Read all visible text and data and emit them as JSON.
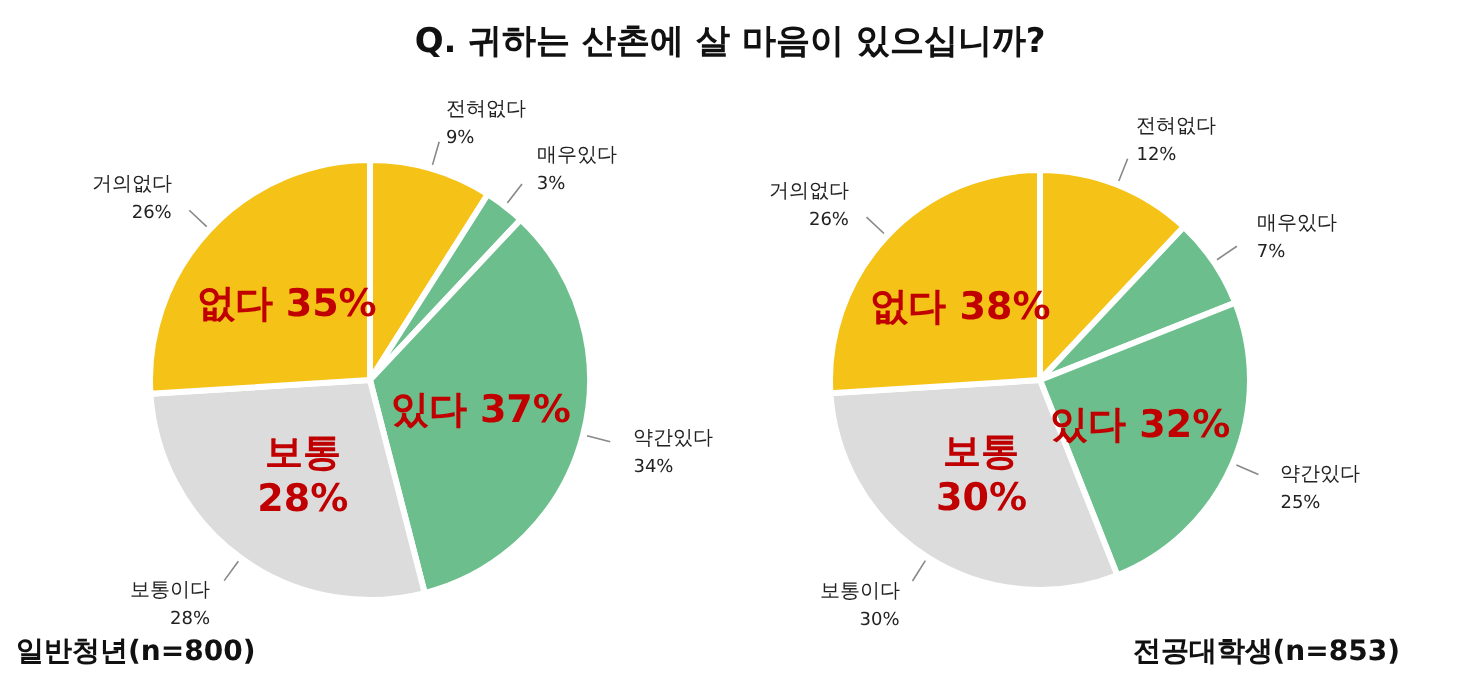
{
  "chart_data": [
    {
      "type": "pie",
      "title": "Q. 귀하는 산촌에 살 마음이 있으십니까?",
      "categories": [
        "전혀없다",
        "매우있다",
        "약간있다",
        "보통이다",
        "거의없다"
      ],
      "values": [
        9,
        3,
        34,
        28,
        26
      ],
      "colors": [
        "#f5c318",
        "#6cbf8c",
        "#6cbf8c",
        "#dcdcdc",
        "#f5c318"
      ],
      "value_labels": [
        "9%",
        "3%",
        "34%",
        "28%",
        "26%"
      ],
      "annotations": [
        "없다 35%",
        "있다 37%",
        "보통 28%",
        "일반청년(n=800)"
      ]
    },
    {
      "type": "pie",
      "categories": [
        "전혀없다",
        "매우있다",
        "약간있다",
        "보통이다",
        "거의없다"
      ],
      "values": [
        12,
        7,
        25,
        30,
        26
      ],
      "colors": [
        "#f5c318",
        "#6cbf8c",
        "#6cbf8c",
        "#dcdcdc",
        "#f5c318"
      ],
      "value_labels": [
        "12%",
        "7%",
        "25%",
        "30%",
        "26%"
      ],
      "annotations": [
        "없다 38%",
        "있다 32%",
        "보통 30%",
        "전공대학생(n=853)"
      ]
    }
  ]
}
